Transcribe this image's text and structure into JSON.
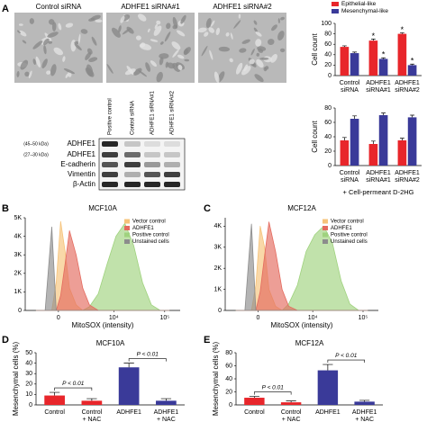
{
  "panel_labels": [
    "A",
    "B",
    "C",
    "D",
    "E"
  ],
  "images": [
    "Control siRNA",
    "ADHFE1 siRNA#1",
    "ADHFE1 siRNA#2"
  ],
  "blot": {
    "columns": [
      "Positive control",
      "Control siRNA",
      "ADHFE1 siRNA#1",
      "ADHFE1 siRNA#2"
    ],
    "rows": [
      {
        "size": "(45–50 kDa)",
        "name": "ADHFE1"
      },
      {
        "size": "(27–30 kDa)",
        "name": "ADHFE1"
      },
      {
        "size": null,
        "name": "E-cadherin"
      },
      {
        "size": null,
        "name": "Vimentin"
      },
      {
        "size": null,
        "name": "β-Actin"
      }
    ]
  },
  "chart_data": [
    {
      "type": "bar",
      "ylabel": "Cell count",
      "categories": [
        [
          "Control",
          "siRNA"
        ],
        [
          "ADHFE1",
          "siRNA#1"
        ],
        [
          "ADHFE1",
          "siRNA#2"
        ]
      ],
      "series": [
        {
          "name": "Epithelial-like",
          "color": "#e8262b",
          "values": [
            55,
            67,
            80
          ],
          "errors": [
            2,
            3,
            2
          ]
        },
        {
          "name": "Mesenchymal-like",
          "color": "#3a3a99",
          "values": [
            43,
            32,
            20
          ],
          "errors": [
            2,
            2,
            2
          ]
        }
      ],
      "ylim": [
        0,
        100
      ],
      "yticks": [
        0,
        20,
        40,
        60,
        80,
        100
      ],
      "legend": "top",
      "annotations": [
        {
          "text": "*",
          "series": 0,
          "index": 1
        },
        {
          "text": "*",
          "series": 0,
          "index": 2
        },
        {
          "text": "*",
          "series": 1,
          "index": 1
        },
        {
          "text": "*",
          "series": 1,
          "index": 2
        }
      ]
    },
    {
      "type": "bar",
      "ylabel": "Cell count",
      "subtitle": "+ Cell-permeant D-2HG",
      "categories": [
        [
          "Control",
          "siRNA"
        ],
        [
          "ADHFE1",
          "siRNA#1"
        ],
        [
          "ADHFE1",
          "siRNA#2"
        ]
      ],
      "series": [
        {
          "name": "Epithelial-like",
          "color": "#e8262b",
          "values": [
            35,
            30,
            35
          ],
          "errors": [
            4,
            4,
            3
          ]
        },
        {
          "name": "Mesenchymal-like",
          "color": "#3a3a99",
          "values": [
            65,
            70,
            67
          ],
          "errors": [
            4,
            3,
            3
          ]
        }
      ],
      "ylim": [
        0,
        80
      ],
      "yticks": [
        0,
        20,
        40,
        60,
        80
      ]
    },
    {
      "type": "area",
      "title": "MCF10A",
      "xlabel": "MitoSOX (intensity)",
      "x": [
        20,
        24,
        27,
        29,
        31,
        33,
        35,
        38,
        41,
        44,
        48,
        52,
        56,
        60,
        64,
        68,
        72,
        76,
        80
      ],
      "series": [
        {
          "name": "Vector control",
          "color": "#f6c37a",
          "values": [
            0,
            0,
            0,
            1500,
            4800,
            3200,
            1200,
            300,
            0,
            0,
            0,
            0,
            0,
            0,
            0,
            0,
            0,
            0,
            0
          ]
        },
        {
          "name": "ADHFE1",
          "color": "#e46a5e",
          "values": [
            0,
            0,
            0,
            0,
            800,
            2500,
            4300,
            3000,
            1200,
            300,
            0,
            0,
            0,
            0,
            0,
            0,
            0,
            0,
            0
          ]
        },
        {
          "name": "Positive control",
          "color": "#9fd27e",
          "values": [
            0,
            0,
            0,
            0,
            0,
            0,
            0,
            0,
            0,
            200,
            900,
            2500,
            4000,
            4700,
            3500,
            1500,
            300,
            0,
            0
          ]
        },
        {
          "name": "Unstained cells",
          "color": "#8c8c8c",
          "values": [
            0,
            0,
            4500,
            0,
            0,
            0,
            0,
            0,
            0,
            0,
            0,
            0,
            0,
            0,
            0,
            0,
            0,
            0,
            0
          ]
        }
      ],
      "xlim": [
        15,
        85
      ],
      "xticks": [
        {
          "value": 30,
          "label": "0"
        },
        {
          "value": 55,
          "label": "10⁴"
        },
        {
          "value": 78,
          "label": "10⁵"
        }
      ],
      "ylim": [
        0,
        5000
      ],
      "yticks": [
        0,
        {
          "value": 1000,
          "label": "1K"
        },
        {
          "value": 2000,
          "label": "2K"
        },
        {
          "value": 3000,
          "label": "3K"
        },
        {
          "value": 4000,
          "label": "4K"
        },
        {
          "value": 5000,
          "label": "5K"
        }
      ],
      "legend": "top-right"
    },
    {
      "type": "area",
      "title": "MCF12A",
      "xlabel": "MitoSOX (intensity)",
      "x": [
        20,
        24,
        27,
        29,
        31,
        33,
        35,
        38,
        41,
        44,
        48,
        52,
        56,
        60,
        64,
        68,
        72,
        76,
        80
      ],
      "series": [
        {
          "name": "Vector control",
          "color": "#f6c37a",
          "values": [
            0,
            0,
            0,
            1200,
            4000,
            3000,
            1000,
            200,
            0,
            0,
            0,
            0,
            0,
            0,
            0,
            0,
            0,
            0,
            0
          ]
        },
        {
          "name": "ADHFE1",
          "color": "#e46a5e",
          "values": [
            0,
            0,
            0,
            0,
            900,
            2600,
            4200,
            2800,
            1000,
            200,
            0,
            0,
            0,
            0,
            0,
            0,
            0,
            0,
            0
          ]
        },
        {
          "name": "Positive control",
          "color": "#9fd27e",
          "values": [
            0,
            0,
            0,
            0,
            0,
            0,
            0,
            0,
            0,
            300,
            1200,
            2800,
            3600,
            4000,
            3200,
            1400,
            300,
            0,
            0
          ]
        },
        {
          "name": "Unstained cells",
          "color": "#8c8c8c",
          "values": [
            0,
            0,
            4100,
            0,
            0,
            0,
            0,
            0,
            0,
            0,
            0,
            0,
            0,
            0,
            0,
            0,
            0,
            0,
            0
          ]
        }
      ],
      "xlim": [
        15,
        85
      ],
      "xticks": [
        {
          "value": 30,
          "label": "0"
        },
        {
          "value": 55,
          "label": "10⁴"
        },
        {
          "value": 78,
          "label": "10⁵"
        }
      ],
      "ylim": [
        0,
        4400
      ],
      "yticks": [
        0,
        {
          "value": 1000,
          "label": "1K"
        },
        {
          "value": 2000,
          "label": "2K"
        },
        {
          "value": 3000,
          "label": "3K"
        },
        {
          "value": 4000,
          "label": "4K"
        }
      ],
      "legend": "top-right"
    },
    {
      "type": "bar",
      "title": "MCF10A",
      "ylabel": "Mesenchymal cells (%)",
      "categories": [
        [
          "Control"
        ],
        [
          "Control",
          "+ NAC"
        ],
        [
          "ADHFE1"
        ],
        [
          "ADHFE1",
          "+ NAC"
        ]
      ],
      "values": [
        9,
        4,
        36,
        4
      ],
      "errors": [
        3,
        2,
        4,
        2
      ],
      "colors": [
        "#e8262b",
        "#e8262b",
        "#3a3a99",
        "#3a3a99"
      ],
      "ylim": [
        0,
        50
      ],
      "yticks": [
        0,
        10,
        20,
        30,
        40,
        50
      ],
      "annotations": [
        {
          "text": "P < 0.01",
          "between": [
            0,
            1
          ]
        },
        {
          "text": "P < 0.01",
          "between": [
            2,
            3
          ]
        }
      ]
    },
    {
      "type": "bar",
      "title": "MCF12A",
      "ylabel": "Mesenchymal cells (%)",
      "categories": [
        [
          "Control"
        ],
        [
          "Control",
          "+ NAC"
        ],
        [
          "ADHFE1"
        ],
        [
          "ADHFE1",
          "+ NAC"
        ]
      ],
      "values": [
        11,
        4,
        53,
        5
      ],
      "errors": [
        2,
        2,
        9,
        2
      ],
      "colors": [
        "#e8262b",
        "#e8262b",
        "#3a3a99",
        "#3a3a99"
      ],
      "ylim": [
        0,
        80
      ],
      "yticks": [
        0,
        20,
        40,
        60,
        80
      ],
      "annotations": [
        {
          "text": "P < 0.01",
          "between": [
            0,
            1
          ]
        },
        {
          "text": "P < 0.01",
          "between": [
            2,
            3
          ]
        }
      ]
    }
  ]
}
